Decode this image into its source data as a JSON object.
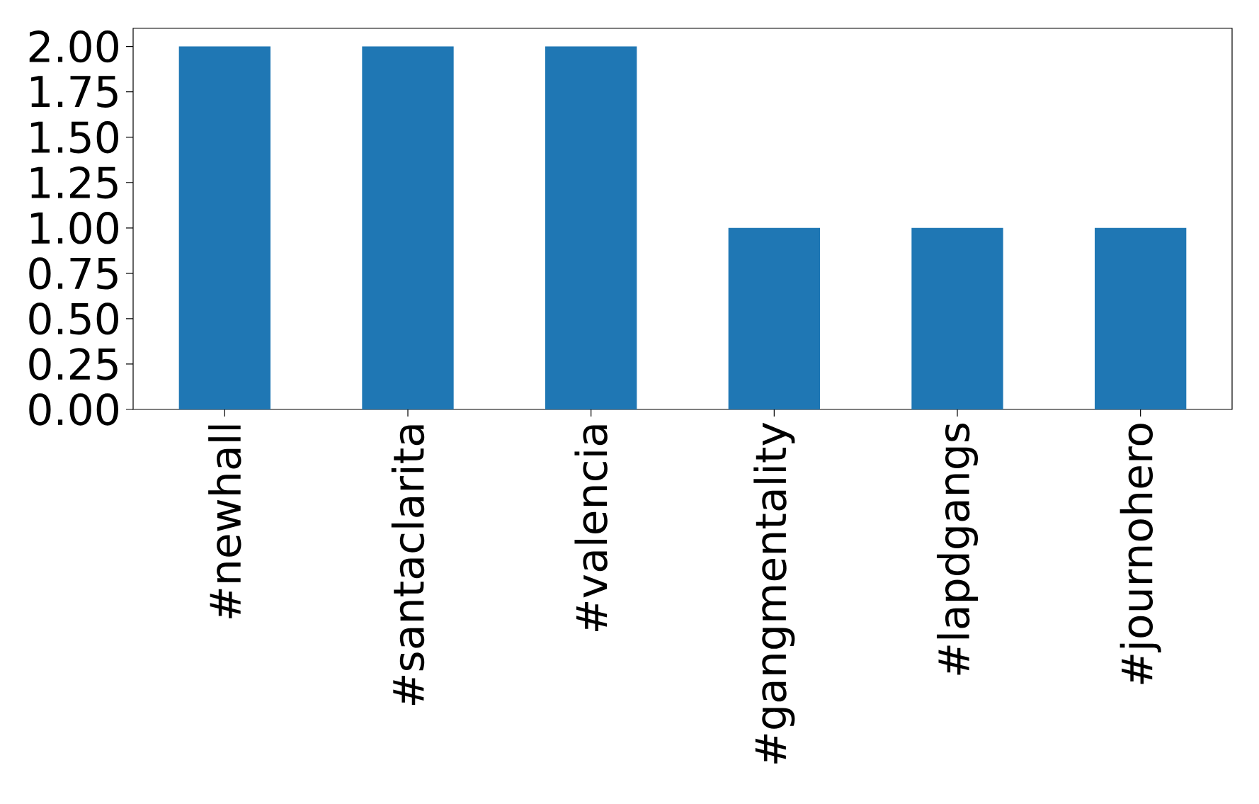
{
  "chart_data": {
    "type": "bar",
    "categories": [
      "#newhall",
      "#santaclarita",
      "#valencia",
      "#gangmentality",
      "#lapdgangs",
      "#journohero"
    ],
    "values": [
      2,
      2,
      2,
      1,
      1,
      1
    ],
    "color": "#1f77b4",
    "ylim": [
      0,
      2.1
    ],
    "yticks": [
      {
        "value": 0,
        "label": "0.00"
      },
      {
        "value": 0.25,
        "label": "0.25"
      },
      {
        "value": 0.5,
        "label": "0.50"
      },
      {
        "value": 0.75,
        "label": "0.75"
      },
      {
        "value": 1,
        "label": "1.00"
      },
      {
        "value": 1.25,
        "label": "1.25"
      },
      {
        "value": 1.5,
        "label": "1.50"
      },
      {
        "value": 1.75,
        "label": "1.75"
      },
      {
        "value": 2,
        "label": "2.00"
      }
    ],
    "grid": false
  }
}
